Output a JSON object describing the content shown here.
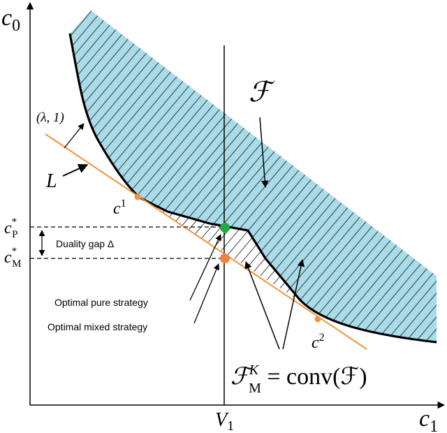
{
  "axes": {
    "y_label": {
      "base": "c",
      "sub": "0"
    },
    "x_label": {
      "base": "c",
      "sub": "1"
    }
  },
  "labels": {
    "v1": {
      "base": "V",
      "sub": "1"
    },
    "feasible_set": "ℱ",
    "normal": "(λ, 1)",
    "line": "L",
    "c1": {
      "base": "c",
      "sup": "1"
    },
    "c2": {
      "base": "c",
      "sup": "2"
    },
    "c_p": {
      "base": "c",
      "sup": "*",
      "sub": "P"
    },
    "c_m": {
      "base": "c",
      "sup": "*",
      "sub": "M"
    },
    "duality_gap": "Duality gap Δ",
    "pure": "Optimal pure strategy",
    "mixed": "Optimal mixed strategy",
    "conv": {
      "base": "ℱ",
      "sup": "K",
      "sub": "M",
      "rest": " = conv(ℱ)"
    }
  }
}
